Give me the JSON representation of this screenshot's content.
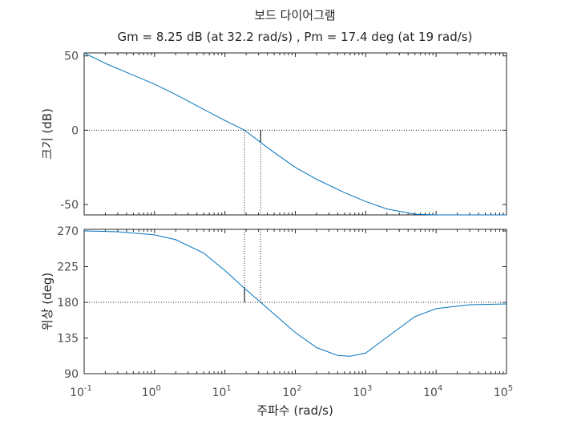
{
  "chart_data": [
    {
      "type": "line",
      "title": "보드 다이어그램",
      "subtitle": "Gm = 8.25 dB (at 32.2 rad/s) ,  Pm = 17.4 deg (at 19 rad/s)",
      "xscale": "log",
      "xlim": [
        0.1,
        100000
      ],
      "ylim": [
        -57,
        52
      ],
      "ylabel": "크기 (dB)",
      "yticks": [
        "50",
        "0",
        "-50"
      ],
      "reference_line": 0,
      "markers_x": [
        19,
        32.2
      ],
      "series": [
        {
          "x": [
            0.1,
            0.2,
            0.5,
            1,
            2,
            5,
            10,
            19,
            32.2,
            50,
            100,
            200,
            500,
            1000,
            2000,
            5000,
            10000,
            100000
          ],
          "values": [
            52,
            45,
            37,
            31,
            24,
            14,
            6.5,
            0,
            -8.25,
            -15,
            -25,
            -33,
            -42,
            -48,
            -53,
            -56.5,
            -57,
            -57
          ]
        }
      ]
    },
    {
      "type": "line",
      "xscale": "log",
      "xlim": [
        0.1,
        100000
      ],
      "ylim": [
        90,
        272
      ],
      "ylabel": "위상 (deg)",
      "xlabel": "주파수  (rad/s)",
      "yticks": [
        "270",
        "225",
        "180",
        "135",
        "90"
      ],
      "xticks": [
        {
          "base": "10",
          "exp": "-1"
        },
        {
          "base": "10",
          "exp": "0"
        },
        {
          "base": "10",
          "exp": "1"
        },
        {
          "base": "10",
          "exp": "2"
        },
        {
          "base": "10",
          "exp": "3"
        },
        {
          "base": "10",
          "exp": "4"
        },
        {
          "base": "10",
          "exp": "5"
        }
      ],
      "reference_line": 180,
      "markers_x": [
        19,
        32.2
      ],
      "series": [
        {
          "x": [
            0.1,
            0.3,
            1,
            2,
            5,
            10,
            19,
            32.2,
            50,
            100,
            200,
            400,
            600,
            1000,
            2000,
            5000,
            10000,
            30000,
            100000
          ],
          "values": [
            270,
            269,
            265,
            259,
            242,
            220,
            197.4,
            180,
            165,
            142,
            123,
            113,
            112,
            116,
            136,
            162,
            172,
            177,
            178
          ]
        }
      ]
    }
  ]
}
